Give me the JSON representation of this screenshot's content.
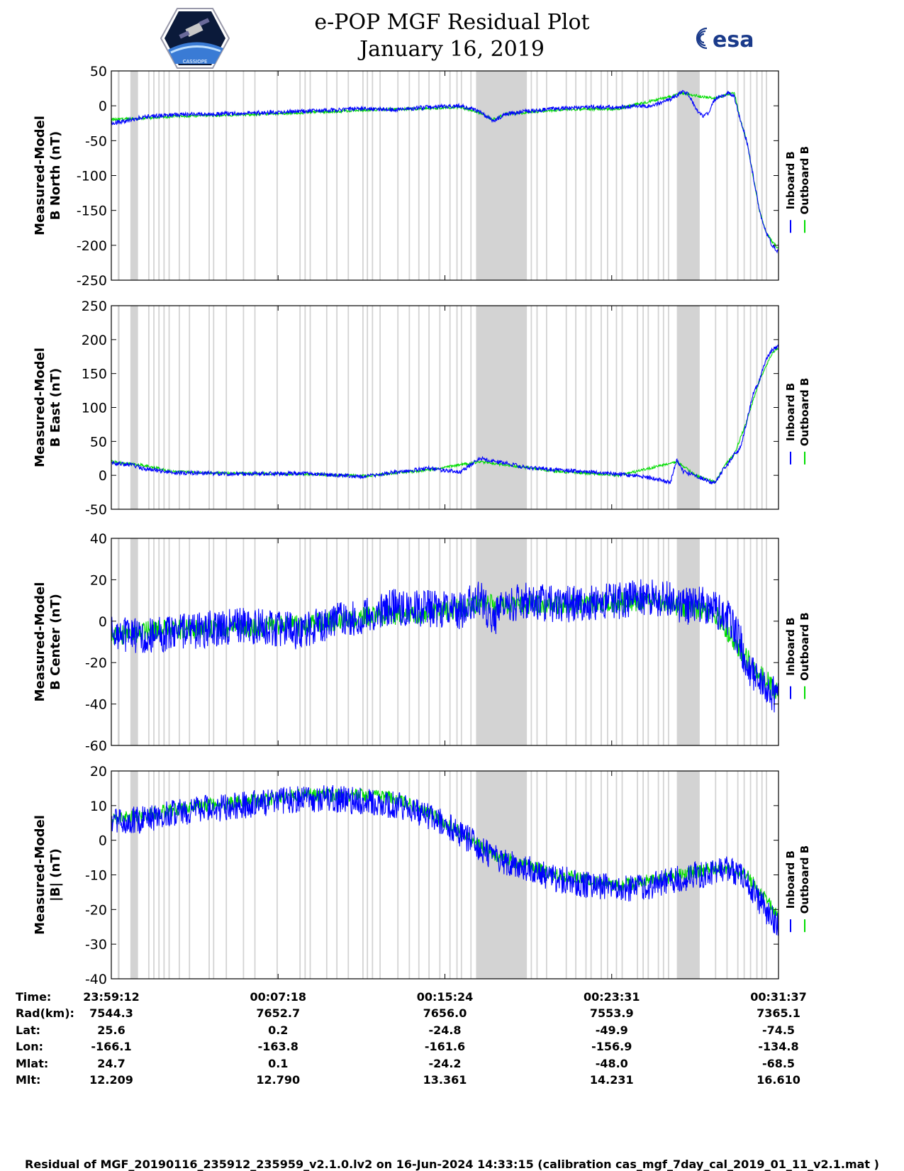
{
  "header": {
    "title_line1": "e-POP MGF Residual Plot",
    "title_line2": "January 16, 2019",
    "left_logo_text": "CASSIOPE",
    "right_logo_text": "esa"
  },
  "colors": {
    "inboard": "#0000ff",
    "outboard": "#00dd00",
    "shading": "#d3d3d3"
  },
  "chart_data": [
    {
      "type": "line",
      "id": "north",
      "ylabel": [
        "Measured-Model",
        "B North (nT)"
      ],
      "ylim": [
        -250,
        50
      ],
      "yticks": [
        50,
        0,
        -50,
        -100,
        -150,
        -200,
        -250
      ],
      "legend": [
        "Inboard B",
        "Outboard B"
      ],
      "noise_inboard": 3,
      "noise_outboard": 2,
      "series_inboard": [
        [
          0,
          -25
        ],
        [
          2,
          -22
        ],
        [
          5,
          -16
        ],
        [
          10,
          -13
        ],
        [
          20,
          -11
        ],
        [
          30,
          -8
        ],
        [
          40,
          -4
        ],
        [
          45,
          -6
        ],
        [
          50,
          -2
        ],
        [
          55,
          0
        ],
        [
          58,
          -8
        ],
        [
          60,
          -22
        ],
        [
          62,
          -12
        ],
        [
          65,
          -8
        ],
        [
          70,
          -4
        ],
        [
          75,
          -2
        ],
        [
          80,
          -2
        ],
        [
          85,
          0
        ],
        [
          88,
          10
        ],
        [
          90,
          20
        ],
        [
          91,
          15
        ],
        [
          92,
          -5
        ],
        [
          93,
          -15
        ],
        [
          94,
          -10
        ],
        [
          95,
          10
        ],
        [
          97,
          18
        ],
        [
          98,
          15
        ],
        [
          99,
          -20
        ],
        [
          100,
          -50
        ],
        [
          101,
          -100
        ],
        [
          102,
          -150
        ],
        [
          103,
          -180
        ],
        [
          104,
          -200
        ],
        [
          105,
          -210
        ]
      ],
      "series_outboard": [
        [
          0,
          -20
        ],
        [
          5,
          -18
        ],
        [
          10,
          -15
        ],
        [
          20,
          -13
        ],
        [
          30,
          -10
        ],
        [
          40,
          -6
        ],
        [
          50,
          -4
        ],
        [
          55,
          -2
        ],
        [
          58,
          -10
        ],
        [
          60,
          -20
        ],
        [
          62,
          -12
        ],
        [
          70,
          -6
        ],
        [
          80,
          -4
        ],
        [
          90,
          18
        ],
        [
          95,
          10
        ],
        [
          98,
          20
        ],
        [
          99,
          -20
        ],
        [
          100,
          -50
        ],
        [
          101,
          -100
        ],
        [
          102,
          -150
        ],
        [
          103,
          -180
        ],
        [
          104,
          -195
        ],
        [
          105,
          -205
        ]
      ]
    },
    {
      "type": "line",
      "id": "east",
      "ylabel": [
        "Measured-Model",
        "B East (nT)"
      ],
      "ylim": [
        -50,
        250
      ],
      "yticks": [
        250,
        200,
        150,
        100,
        50,
        0,
        -50
      ],
      "legend": [
        "Inboard B",
        "Outboard B"
      ],
      "noise_inboard": 3,
      "noise_outboard": 2,
      "series_inboard": [
        [
          0,
          18
        ],
        [
          3,
          16
        ],
        [
          5,
          10
        ],
        [
          10,
          4
        ],
        [
          20,
          2
        ],
        [
          30,
          3
        ],
        [
          40,
          -2
        ],
        [
          45,
          5
        ],
        [
          50,
          10
        ],
        [
          55,
          5
        ],
        [
          58,
          25
        ],
        [
          62,
          18
        ],
        [
          65,
          12
        ],
        [
          70,
          8
        ],
        [
          75,
          5
        ],
        [
          80,
          2
        ],
        [
          85,
          -4
        ],
        [
          88,
          -10
        ],
        [
          89,
          22
        ],
        [
          90,
          5
        ],
        [
          92,
          0
        ],
        [
          93,
          -5
        ],
        [
          95,
          -12
        ],
        [
          96,
          5
        ],
        [
          97,
          15
        ],
        [
          98,
          30
        ],
        [
          99,
          40
        ],
        [
          100,
          80
        ],
        [
          101,
          120
        ],
        [
          102,
          140
        ],
        [
          103,
          170
        ],
        [
          104,
          185
        ],
        [
          105,
          190
        ]
      ],
      "series_outboard": [
        [
          0,
          20
        ],
        [
          5,
          15
        ],
        [
          10,
          5
        ],
        [
          20,
          3
        ],
        [
          30,
          2
        ],
        [
          40,
          -1
        ],
        [
          50,
          8
        ],
        [
          58,
          20
        ],
        [
          70,
          6
        ],
        [
          80,
          0
        ],
        [
          89,
          20
        ],
        [
          92,
          0
        ],
        [
          95,
          -10
        ],
        [
          97,
          20
        ],
        [
          98,
          30
        ],
        [
          100,
          80
        ],
        [
          102,
          140
        ],
        [
          104,
          180
        ],
        [
          105,
          188
        ]
      ]
    },
    {
      "type": "line",
      "id": "center",
      "ylabel": [
        "Measured-Model",
        "B Center (nT)"
      ],
      "ylim": [
        -60,
        40
      ],
      "yticks": [
        40,
        20,
        0,
        -20,
        -40,
        -60
      ],
      "legend": [
        "Inboard B",
        "Outboard B"
      ],
      "noise_inboard": 9,
      "noise_outboard": 5,
      "series_inboard": [
        [
          0,
          -5
        ],
        [
          5,
          -8
        ],
        [
          10,
          -6
        ],
        [
          15,
          -4
        ],
        [
          20,
          -2
        ],
        [
          25,
          -3
        ],
        [
          30,
          -5
        ],
        [
          35,
          0
        ],
        [
          40,
          3
        ],
        [
          45,
          7
        ],
        [
          50,
          6
        ],
        [
          55,
          5
        ],
        [
          58,
          12
        ],
        [
          60,
          0
        ],
        [
          62,
          8
        ],
        [
          65,
          10
        ],
        [
          70,
          8
        ],
        [
          75,
          9
        ],
        [
          80,
          10
        ],
        [
          85,
          12
        ],
        [
          88,
          10
        ],
        [
          90,
          7
        ],
        [
          93,
          8
        ],
        [
          95,
          6
        ],
        [
          97,
          2
        ],
        [
          99,
          -10
        ],
        [
          100,
          -22
        ],
        [
          102,
          -30
        ],
        [
          104,
          -35
        ],
        [
          105,
          -38
        ]
      ],
      "series_outboard": [
        [
          0,
          -7
        ],
        [
          5,
          -5
        ],
        [
          10,
          -4
        ],
        [
          20,
          -3
        ],
        [
          30,
          -2
        ],
        [
          40,
          2
        ],
        [
          50,
          4
        ],
        [
          58,
          8
        ],
        [
          65,
          8
        ],
        [
          75,
          8
        ],
        [
          85,
          10
        ],
        [
          95,
          4
        ],
        [
          100,
          -18
        ],
        [
          105,
          -35
        ]
      ]
    },
    {
      "type": "line",
      "id": "magnitude",
      "ylabel": [
        "Measured-Model",
        "|B| (nT)"
      ],
      "ylim": [
        -40,
        20
      ],
      "yticks": [
        20,
        10,
        0,
        -10,
        -20,
        -30,
        -40
      ],
      "legend": [
        "Inboard B",
        "Outboard B"
      ],
      "noise_inboard": 4,
      "noise_outboard": 2,
      "series_inboard": [
        [
          0,
          5
        ],
        [
          5,
          6
        ],
        [
          10,
          8
        ],
        [
          15,
          9
        ],
        [
          20,
          10
        ],
        [
          25,
          11
        ],
        [
          30,
          12
        ],
        [
          35,
          12
        ],
        [
          40,
          11
        ],
        [
          45,
          10
        ],
        [
          50,
          7
        ],
        [
          55,
          2
        ],
        [
          58,
          -2
        ],
        [
          60,
          -5
        ],
        [
          65,
          -8
        ],
        [
          70,
          -11
        ],
        [
          75,
          -13
        ],
        [
          80,
          -14
        ],
        [
          85,
          -13
        ],
        [
          90,
          -11
        ],
        [
          95,
          -9
        ],
        [
          97,
          -8
        ],
        [
          100,
          -12
        ],
        [
          103,
          -20
        ],
        [
          105,
          -25
        ]
      ],
      "series_outboard": [
        [
          0,
          6
        ],
        [
          5,
          7
        ],
        [
          10,
          9
        ],
        [
          20,
          11
        ],
        [
          30,
          13
        ],
        [
          40,
          13
        ],
        [
          45,
          12
        ],
        [
          50,
          8
        ],
        [
          60,
          -4
        ],
        [
          70,
          -10
        ],
        [
          80,
          -13
        ],
        [
          90,
          -10
        ],
        [
          95,
          -8
        ],
        [
          100,
          -10
        ],
        [
          105,
          -22
        ]
      ]
    }
  ],
  "shaded_intervals": [
    [
      1.0,
      1.3
    ],
    [
      3.0,
      4.2
    ],
    [
      5.8,
      6.0
    ],
    [
      6.6,
      6.8
    ],
    [
      7.4,
      7.6
    ],
    [
      8.2,
      8.4
    ],
    [
      9.0,
      9.2
    ],
    [
      10.6,
      10.8
    ],
    [
      12.2,
      12.4
    ],
    [
      15.3,
      15.5
    ],
    [
      16.0,
      16.2
    ],
    [
      18.0,
      18.2
    ],
    [
      20.7,
      20.9
    ],
    [
      22.5,
      22.7
    ],
    [
      26.0,
      26.2
    ],
    [
      29.6,
      29.8
    ],
    [
      30.4,
      30.6
    ],
    [
      31.2,
      31.4
    ],
    [
      33.8,
      34.0
    ],
    [
      35.4,
      35.6
    ],
    [
      37.2,
      37.4
    ],
    [
      39.5,
      39.7
    ],
    [
      40.2,
      40.4
    ],
    [
      41.0,
      41.2
    ],
    [
      42.2,
      42.4
    ],
    [
      45.0,
      45.2
    ],
    [
      46.8,
      47.0
    ],
    [
      48.3,
      48.5
    ],
    [
      49.9,
      50.1
    ],
    [
      51.6,
      51.8
    ],
    [
      53.2,
      53.4
    ],
    [
      54.3,
      54.5
    ],
    [
      55.0,
      55.2
    ],
    [
      56.5,
      56.7
    ],
    [
      57.4,
      65.4
    ],
    [
      66.0,
      66.2
    ],
    [
      66.9,
      67.1
    ],
    [
      68.4,
      68.6
    ],
    [
      71.5,
      71.7
    ],
    [
      73.0,
      73.2
    ],
    [
      74.6,
      74.8
    ],
    [
      75.4,
      75.6
    ],
    [
      77.0,
      77.2
    ],
    [
      78.0,
      78.2
    ],
    [
      79.4,
      79.6
    ],
    [
      80.3,
      80.5
    ],
    [
      82.7,
      82.9
    ],
    [
      83.6,
      83.8
    ],
    [
      84.4,
      84.6
    ],
    [
      86.0,
      86.2
    ],
    [
      86.8,
      87.0
    ],
    [
      87.6,
      87.8
    ],
    [
      89.0,
      92.6
    ],
    [
      95.0,
      95.2
    ],
    [
      96.8,
      97.0
    ],
    [
      98.5,
      98.7
    ],
    [
      99.5,
      99.7
    ],
    [
      100.5,
      100.7
    ],
    [
      101.5,
      101.7
    ],
    [
      102.3,
      102.5
    ],
    [
      103.0,
      103.2
    ]
  ],
  "time_table": {
    "row_labels": [
      "Time:",
      "Rad(km):",
      "Lat:",
      "Lon:",
      "Mlat:",
      "Mlt:"
    ],
    "columns": [
      [
        "23:59:12",
        "7544.3",
        "25.6",
        "-166.1",
        "24.7",
        "12.209"
      ],
      [
        "00:07:18",
        "7652.7",
        "0.2",
        "-163.8",
        "0.1",
        "12.790"
      ],
      [
        "00:15:24",
        "7656.0",
        "-24.8",
        "-161.6",
        "-24.2",
        "13.361"
      ],
      [
        "00:23:31",
        "7553.9",
        "-49.9",
        "-156.9",
        "-48.0",
        "14.231"
      ],
      [
        "00:31:37",
        "7365.1",
        "-74.5",
        "-134.8",
        "-68.5",
        "16.610"
      ]
    ]
  },
  "footer": "Residual of MGF_20190116_235912_235959_v2.1.0.lv2 on 16-Jun-2024 14:33:15 (calibration cas_mgf_7day_cal_2019_01_11_v2.1.mat )"
}
